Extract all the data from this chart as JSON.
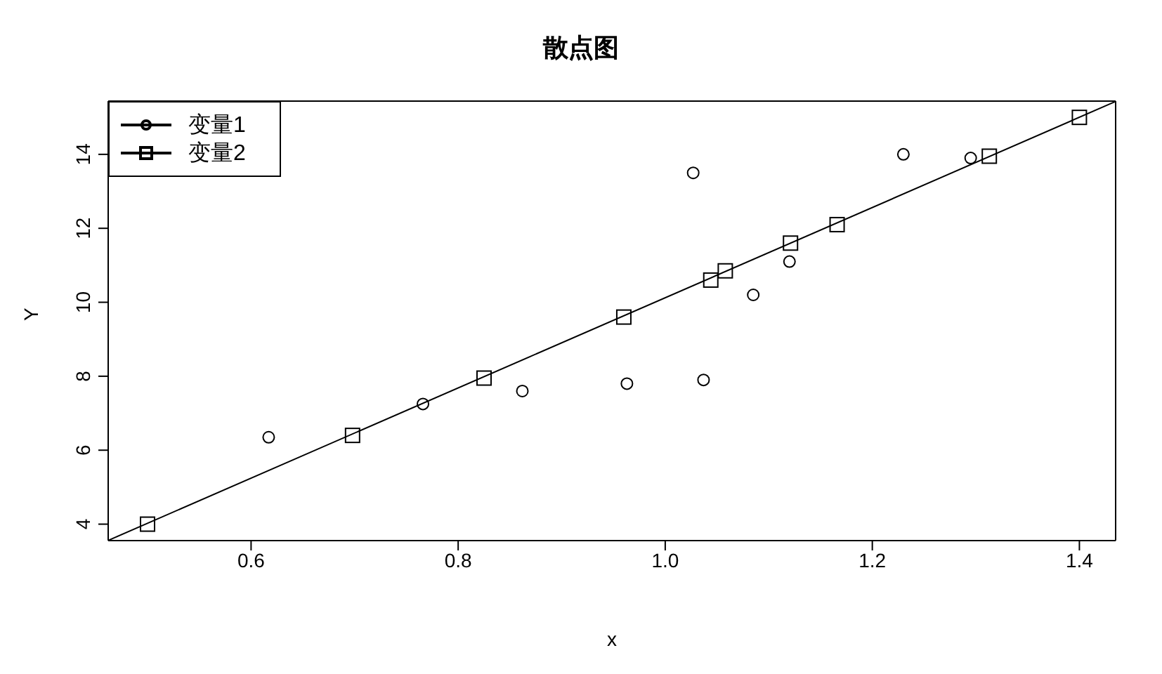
{
  "chart_data": {
    "type": "scatter",
    "title": "散点图",
    "xlabel": "x",
    "ylabel": "Y",
    "xlim": [
      0.462,
      1.435
    ],
    "ylim": [
      3.555,
      15.44
    ],
    "xticks": [
      {
        "value": 0.6,
        "label": "0.6"
      },
      {
        "value": 0.8,
        "label": "0.8"
      },
      {
        "value": 1.0,
        "label": "1.0"
      },
      {
        "value": 1.2,
        "label": "1.2"
      },
      {
        "value": 1.4,
        "label": "1.4"
      }
    ],
    "yticks": [
      4,
      6,
      8,
      10,
      12,
      14
    ],
    "legend": "top left",
    "series": [
      {
        "name": "变量1",
        "marker": "circle",
        "color": "#000000",
        "x": [
          0.617,
          0.766,
          0.862,
          0.963,
          1.027,
          1.037,
          1.085,
          1.12,
          1.23,
          1.295
        ],
        "values": [
          6.35,
          7.25,
          7.6,
          7.8,
          13.5,
          7.9,
          10.2,
          11.1,
          14.0,
          13.9
        ]
      },
      {
        "name": "变量2",
        "marker": "square",
        "color": "#000000",
        "x": [
          0.5,
          0.698,
          0.825,
          0.96,
          1.044,
          1.058,
          1.121,
          1.166,
          1.313,
          1.4
        ],
        "values": [
          4.0,
          6.4,
          7.95,
          9.6,
          10.6,
          10.85,
          11.6,
          12.1,
          13.95,
          15.0
        ]
      },
      {
        "type": "line",
        "marker": "none",
        "line_style": "solid",
        "color": "#000000",
        "x": [
          0.462,
          1.435
        ],
        "values": [
          3.56,
          15.43
        ]
      }
    ]
  }
}
